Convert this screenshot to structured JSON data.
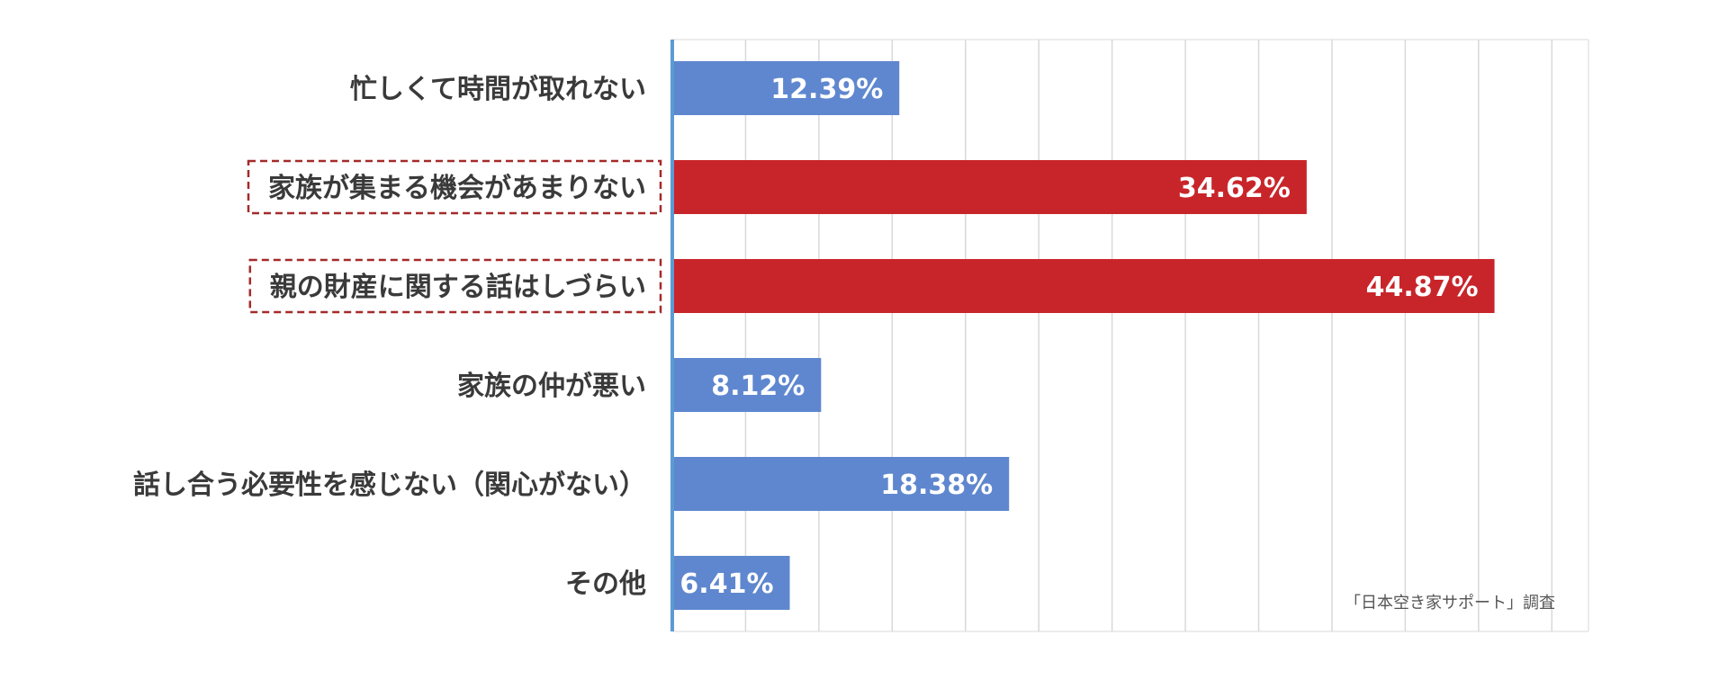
{
  "chart_data": {
    "type": "bar",
    "orientation": "horizontal",
    "categories": [
      "忙しくて時間が取れない",
      "家族が集まる機会があまりない",
      "親の財産に関する話はしづらい",
      "家族の仲が悪い",
      "話し合う必要性を感じない（関心がない）",
      "その他"
    ],
    "values": [
      12.39,
      34.62,
      44.87,
      8.12,
      18.38,
      6.41
    ],
    "value_labels": [
      "12.39%",
      "34.62%",
      "44.87%",
      "8.12%",
      "18.38%",
      "6.41%"
    ],
    "highlighted": [
      false,
      true,
      true,
      false,
      false,
      false
    ],
    "xlim": [
      0,
      50
    ],
    "grid": true,
    "source": "「日本空き家サポート」調査",
    "colors": {
      "normal": "#5f87cf",
      "highlight": "#c8252a",
      "axis": "#5b9bd5",
      "grid": "#d9d9d9",
      "highlight_border": "#a52a2a"
    }
  }
}
